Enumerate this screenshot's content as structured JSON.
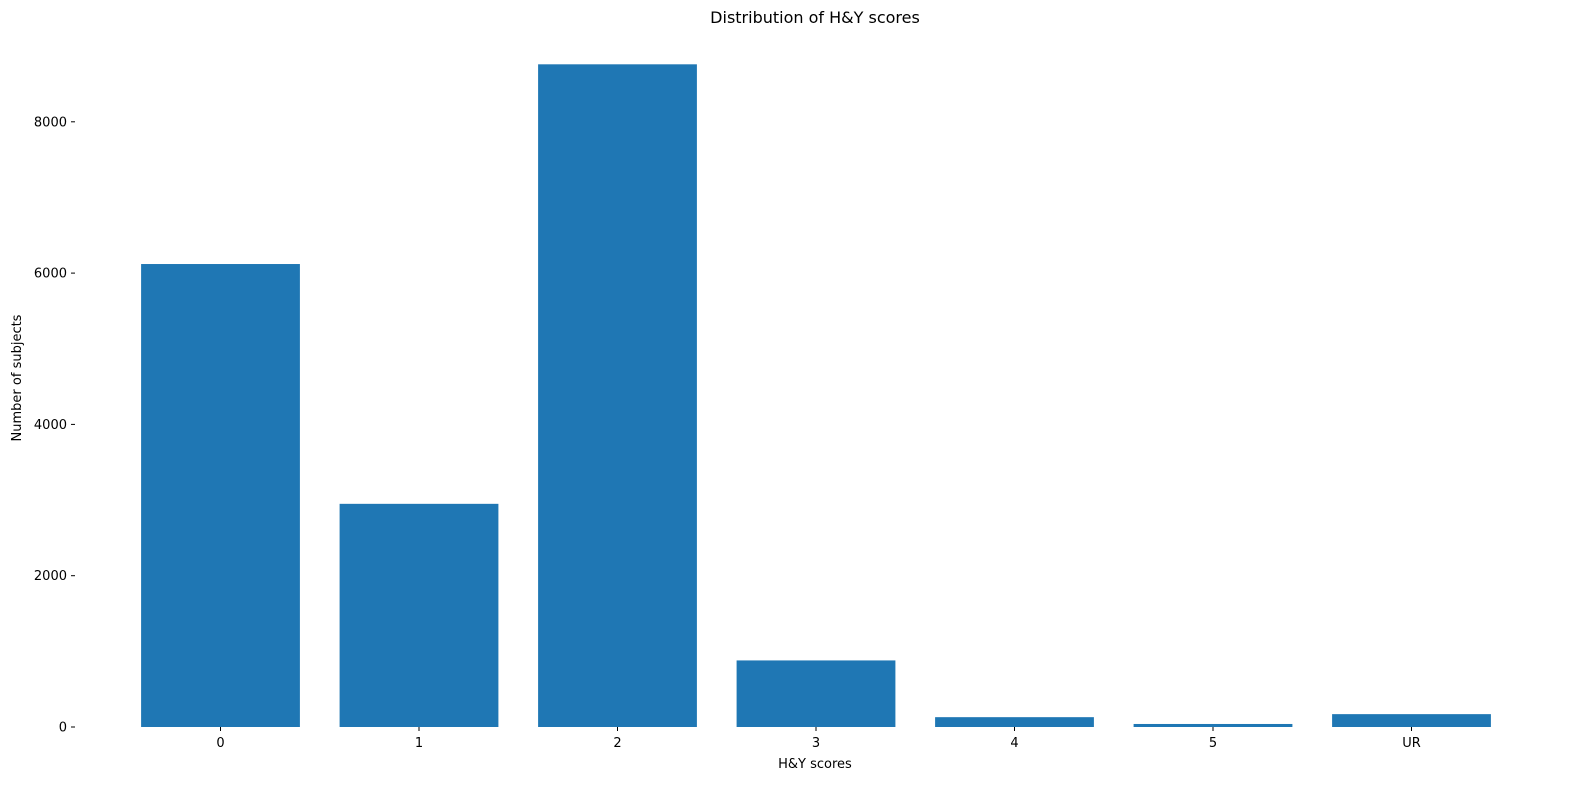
{
  "chart_data": {
    "type": "bar",
    "title": "Distribution of H&Y scores",
    "xlabel": "H&Y scores",
    "ylabel": "Number of subjects",
    "categories": [
      "0",
      "1",
      "2",
      "3",
      "4",
      "5",
      "UR"
    ],
    "values": [
      6120,
      2950,
      8760,
      880,
      130,
      40,
      170
    ],
    "ylim": [
      0,
      8850
    ],
    "yticks": [
      0,
      2000,
      4000,
      6000,
      8000
    ],
    "ytick_labels": [
      "0",
      "2000",
      "4000",
      "6000",
      "8000"
    ],
    "grid": false,
    "legend": "none",
    "bar_color": "#1f77b4"
  }
}
